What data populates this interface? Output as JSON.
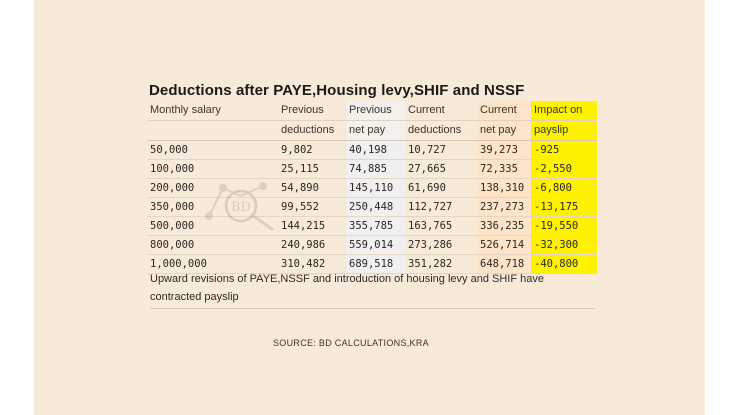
{
  "title": "Deductions after PAYE,Housing levy,SHIF and NSSF",
  "columns": {
    "salary": [
      "Monthly salary",
      ""
    ],
    "prev_deductions": [
      "Previous",
      "deductions"
    ],
    "prev_net": [
      "Previous",
      "net pay"
    ],
    "cur_deductions": [
      "Current",
      "deductions"
    ],
    "cur_net": [
      "Current",
      "net pay"
    ],
    "impact": [
      "Impact on",
      "payslip"
    ]
  },
  "rows": [
    {
      "salary": "50,000",
      "prev_deductions": "9,802",
      "prev_net": "40,198",
      "cur_deductions": "10,727",
      "cur_net": "39,273",
      "impact": "-925"
    },
    {
      "salary": "100,000",
      "prev_deductions": "25,115",
      "prev_net": "74,885",
      "cur_deductions": "27,665",
      "cur_net": "72,335",
      "impact": "-2,550"
    },
    {
      "salary": "200,000",
      "prev_deductions": "54,890",
      "prev_net": "145,110",
      "cur_deductions": "61,690",
      "cur_net": "138,310",
      "impact": "-6,800"
    },
    {
      "salary": "350,000",
      "prev_deductions": "99,552",
      "prev_net": "250,448",
      "cur_deductions": "112,727",
      "cur_net": "237,273",
      "impact": "-13,175"
    },
    {
      "salary": "500,000",
      "prev_deductions": "144,215",
      "prev_net": "355,785",
      "cur_deductions": "163,765",
      "cur_net": "336,235",
      "impact": "-19,550"
    },
    {
      "salary": "800,000",
      "prev_deductions": "240,986",
      "prev_net": "559,014",
      "cur_deductions": "273,286",
      "cur_net": "526,714",
      "impact": "-32,300"
    },
    {
      "salary": "1,000,000",
      "prev_deductions": "310,482",
      "prev_net": "689,518",
      "cur_deductions": "351,282",
      "cur_net": "648,718",
      "impact": "-40,800"
    }
  ],
  "note": "Upward revisions of PAYE,NSSF and introduction of housing levy and SHIF have contracted payslip",
  "source": "SOURCE: BD CALCULATIONS,KRA",
  "watermark_text": "BD",
  "colors": {
    "background": "#f8ead9",
    "impact_highlight": "#fff200",
    "current_net_shade": "#fde4c8"
  }
}
